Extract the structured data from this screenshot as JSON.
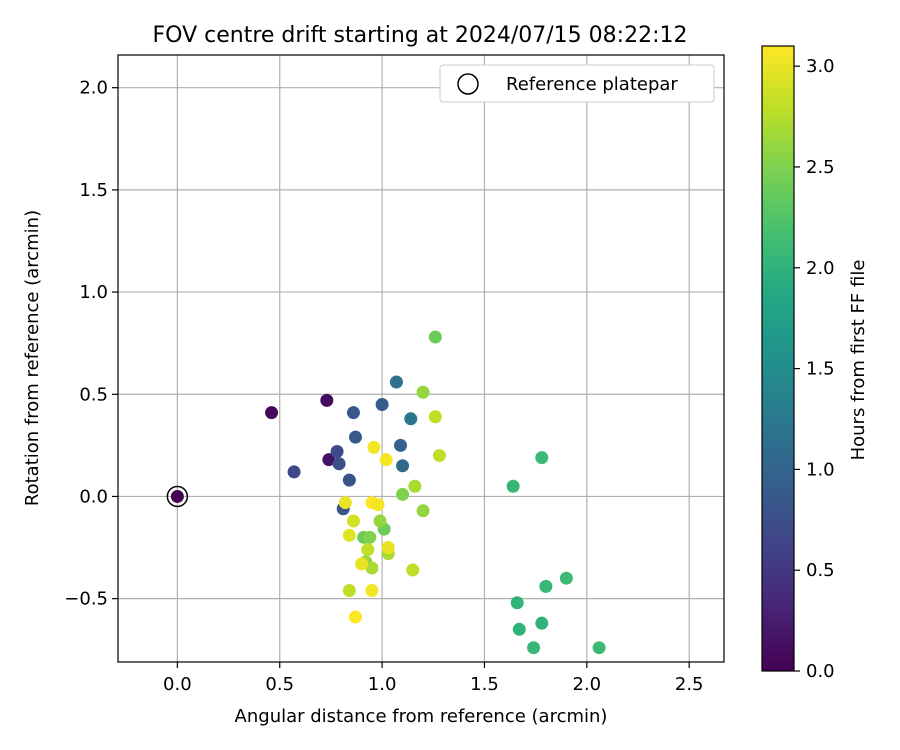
{
  "chart_data": {
    "type": "scatter",
    "title": "FOV centre drift starting at 2024/07/15 08:22:12",
    "xlabel": "Angular distance from reference (arcmin)",
    "ylabel": "Rotation from reference (arcmin)",
    "xlim": [
      -0.29,
      2.67
    ],
    "ylim": [
      -0.81,
      2.16
    ],
    "xticks": [
      "0.0",
      "0.5",
      "1.0",
      "1.5",
      "2.0",
      "2.5"
    ],
    "yticks": [
      "−0.5",
      "0.0",
      "0.5",
      "1.0",
      "1.5",
      "2.0"
    ],
    "xtick_values": [
      0.0,
      0.5,
      1.0,
      1.5,
      2.0,
      2.5
    ],
    "ytick_values": [
      -0.5,
      0.0,
      0.5,
      1.0,
      1.5,
      2.0
    ],
    "grid": true,
    "legend": {
      "placement": "top-right",
      "label": "Reference platepar"
    },
    "reference_point": {
      "x": 0.0,
      "y": 0.0
    },
    "colorbar": {
      "label": "Hours from first FF file",
      "colormap": "viridis",
      "range": [
        0.0,
        3.1
      ],
      "ticks": [
        "0.0",
        "0.5",
        "1.0",
        "1.5",
        "2.0",
        "2.5",
        "3.0"
      ],
      "tick_values": [
        0.0,
        0.5,
        1.0,
        1.5,
        2.0,
        2.5,
        3.0
      ]
    },
    "points": [
      {
        "x": 0.0,
        "y": 0.0,
        "c": 0.0
      },
      {
        "x": 0.46,
        "y": 0.41,
        "c": 0.05
      },
      {
        "x": 0.73,
        "y": 0.47,
        "c": 0.1
      },
      {
        "x": 0.74,
        "y": 0.18,
        "c": 0.15
      },
      {
        "x": 0.57,
        "y": 0.12,
        "c": 0.65
      },
      {
        "x": 0.78,
        "y": 0.22,
        "c": 0.7
      },
      {
        "x": 0.79,
        "y": 0.16,
        "c": 0.75
      },
      {
        "x": 0.81,
        "y": -0.06,
        "c": 0.8
      },
      {
        "x": 0.84,
        "y": 0.08,
        "c": 0.8
      },
      {
        "x": 0.86,
        "y": 0.41,
        "c": 0.85
      },
      {
        "x": 0.87,
        "y": 0.29,
        "c": 0.85
      },
      {
        "x": 1.0,
        "y": 0.45,
        "c": 0.9
      },
      {
        "x": 1.09,
        "y": 0.25,
        "c": 0.95
      },
      {
        "x": 1.1,
        "y": 0.15,
        "c": 1.05
      },
      {
        "x": 1.07,
        "y": 0.56,
        "c": 1.15
      },
      {
        "x": 1.14,
        "y": 0.38,
        "c": 1.2
      },
      {
        "x": 1.64,
        "y": 0.05,
        "c": 2.05
      },
      {
        "x": 1.78,
        "y": 0.19,
        "c": 2.1
      },
      {
        "x": 1.66,
        "y": -0.52,
        "c": 2.0
      },
      {
        "x": 1.67,
        "y": -0.65,
        "c": 2.0
      },
      {
        "x": 1.74,
        "y": -0.74,
        "c": 2.05
      },
      {
        "x": 1.78,
        "y": -0.62,
        "c": 2.0
      },
      {
        "x": 1.8,
        "y": -0.44,
        "c": 2.05
      },
      {
        "x": 1.9,
        "y": -0.4,
        "c": 2.1
      },
      {
        "x": 2.06,
        "y": -0.74,
        "c": 2.1
      },
      {
        "x": 1.26,
        "y": 0.78,
        "c": 2.4
      },
      {
        "x": 1.2,
        "y": 0.51,
        "c": 2.6
      },
      {
        "x": 1.26,
        "y": 0.39,
        "c": 2.8
      },
      {
        "x": 1.28,
        "y": 0.2,
        "c": 2.8
      },
      {
        "x": 1.16,
        "y": 0.05,
        "c": 2.7
      },
      {
        "x": 1.1,
        "y": 0.01,
        "c": 2.5
      },
      {
        "x": 1.2,
        "y": -0.07,
        "c": 2.6
      },
      {
        "x": 1.01,
        "y": -0.16,
        "c": 2.4
      },
      {
        "x": 0.99,
        "y": -0.12,
        "c": 2.6
      },
      {
        "x": 0.91,
        "y": -0.2,
        "c": 2.4
      },
      {
        "x": 0.94,
        "y": -0.2,
        "c": 2.5
      },
      {
        "x": 1.03,
        "y": -0.28,
        "c": 2.7
      },
      {
        "x": 0.93,
        "y": -0.26,
        "c": 2.8
      },
      {
        "x": 0.92,
        "y": -0.32,
        "c": 2.6
      },
      {
        "x": 0.95,
        "y": -0.35,
        "c": 2.7
      },
      {
        "x": 1.15,
        "y": -0.36,
        "c": 2.8
      },
      {
        "x": 0.84,
        "y": -0.46,
        "c": 2.8
      },
      {
        "x": 0.86,
        "y": -0.12,
        "c": 2.9
      },
      {
        "x": 0.82,
        "y": -0.03,
        "c": 3.0
      },
      {
        "x": 0.84,
        "y": -0.19,
        "c": 2.95
      },
      {
        "x": 0.9,
        "y": -0.33,
        "c": 3.0
      },
      {
        "x": 0.95,
        "y": -0.46,
        "c": 3.05
      },
      {
        "x": 0.87,
        "y": -0.59,
        "c": 3.1
      },
      {
        "x": 0.96,
        "y": 0.24,
        "c": 3.05
      },
      {
        "x": 1.02,
        "y": 0.18,
        "c": 3.05
      },
      {
        "x": 0.95,
        "y": -0.03,
        "c": 3.1
      },
      {
        "x": 0.98,
        "y": -0.04,
        "c": 3.05
      },
      {
        "x": 1.03,
        "y": -0.25,
        "c": 3.0
      }
    ]
  }
}
